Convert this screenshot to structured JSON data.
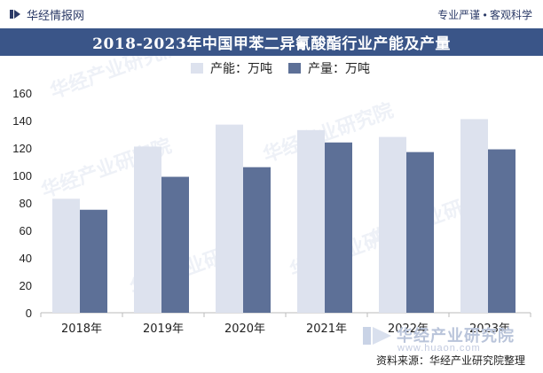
{
  "header": {
    "brand": "华经情报网",
    "tagline": "专业严谨 • 客观科学"
  },
  "chart_data": {
    "type": "bar",
    "title": "2018-2023年中国甲苯二异氰酸酯行业产能及产量",
    "categories": [
      "2018年",
      "2019年",
      "2020年",
      "2021年",
      "2022年",
      "2023年"
    ],
    "series": [
      {
        "name": "产能：万吨",
        "values": [
          83,
          121,
          137,
          133,
          128,
          141
        ],
        "color": "#dde2ee"
      },
      {
        "name": "产量：万吨",
        "values": [
          75,
          99,
          106,
          124,
          117,
          119
        ],
        "color": "#5d7097"
      }
    ],
    "ylim": [
      0,
      160
    ],
    "yticks": [
      0,
      20,
      40,
      60,
      80,
      100,
      120,
      140,
      160
    ],
    "legend": "top-center",
    "grid": false
  },
  "watermark": {
    "name": "华经产业研究院",
    "url": "www.huaon.com"
  },
  "source": "资料来源：华经产业研究院整理"
}
